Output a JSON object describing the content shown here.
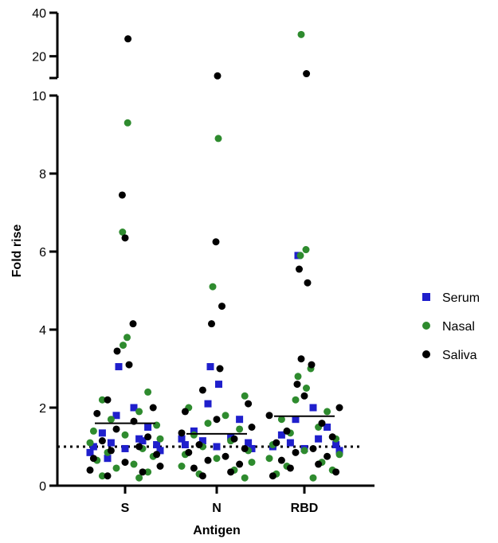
{
  "chart_data": {
    "type": "scatter",
    "xlabel": "Antigen",
    "ylabel": "Fold rise",
    "categories": [
      "S",
      "N",
      "RBD"
    ],
    "y_axis": {
      "broken": true,
      "lower_range": [
        0,
        10
      ],
      "lower_ticks": [
        "0",
        "2",
        "4",
        "6",
        "8",
        "10"
      ],
      "upper_range": [
        10,
        40
      ],
      "upper_ticks": [
        "20",
        "40"
      ]
    },
    "reference_line": {
      "y": 1,
      "style": "dotted"
    },
    "legend": {
      "position": "right"
    },
    "series": [
      {
        "name": "Serum",
        "marker": "square",
        "color": "#1f1fcc",
        "points": [
          {
            "c": "S",
            "y": 3.05
          },
          {
            "c": "S",
            "y": 2.0
          },
          {
            "c": "S",
            "y": 1.8
          },
          {
            "c": "S",
            "y": 1.5
          },
          {
            "c": "S",
            "y": 1.35
          },
          {
            "c": "S",
            "y": 1.2
          },
          {
            "c": "S",
            "y": 1.1
          },
          {
            "c": "S",
            "y": 1.05
          },
          {
            "c": "S",
            "y": 1.0
          },
          {
            "c": "S",
            "y": 0.95
          },
          {
            "c": "S",
            "y": 0.9
          },
          {
            "c": "S",
            "y": 0.85
          },
          {
            "c": "S",
            "y": 1.15
          },
          {
            "c": "S",
            "y": 0.7
          },
          {
            "c": "N",
            "y": 3.05
          },
          {
            "c": "N",
            "y": 2.6
          },
          {
            "c": "N",
            "y": 2.1
          },
          {
            "c": "N",
            "y": 1.7
          },
          {
            "c": "N",
            "y": 1.4
          },
          {
            "c": "N",
            "y": 1.25
          },
          {
            "c": "N",
            "y": 1.15
          },
          {
            "c": "N",
            "y": 1.1
          },
          {
            "c": "N",
            "y": 1.05
          },
          {
            "c": "N",
            "y": 1.0
          },
          {
            "c": "N",
            "y": 0.95
          },
          {
            "c": "N",
            "y": 1.2
          },
          {
            "c": "RBD",
            "y": 5.9
          },
          {
            "c": "RBD",
            "y": 2.0
          },
          {
            "c": "RBD",
            "y": 1.7
          },
          {
            "c": "RBD",
            "y": 1.5
          },
          {
            "c": "RBD",
            "y": 1.3
          },
          {
            "c": "RBD",
            "y": 1.2
          },
          {
            "c": "RBD",
            "y": 1.1
          },
          {
            "c": "RBD",
            "y": 1.05
          },
          {
            "c": "RBD",
            "y": 1.0
          },
          {
            "c": "RBD",
            "y": 0.95
          },
          {
            "c": "RBD",
            "y": 0.9
          }
        ]
      },
      {
        "name": "Nasal",
        "marker": "circle",
        "color": "#2e8b2e",
        "points": [
          {
            "c": "S",
            "y": 9.3
          },
          {
            "c": "S",
            "y": 6.5
          },
          {
            "c": "S",
            "y": 3.8
          },
          {
            "c": "S",
            "y": 3.6
          },
          {
            "c": "S",
            "y": 2.4
          },
          {
            "c": "S",
            "y": 2.2
          },
          {
            "c": "S",
            "y": 1.9
          },
          {
            "c": "S",
            "y": 1.7
          },
          {
            "c": "S",
            "y": 1.55
          },
          {
            "c": "S",
            "y": 1.4
          },
          {
            "c": "S",
            "y": 1.3
          },
          {
            "c": "S",
            "y": 1.2
          },
          {
            "c": "S",
            "y": 1.1
          },
          {
            "c": "S",
            "y": 0.95
          },
          {
            "c": "S",
            "y": 0.85
          },
          {
            "c": "S",
            "y": 0.75
          },
          {
            "c": "S",
            "y": 0.65
          },
          {
            "c": "S",
            "y": 0.55
          },
          {
            "c": "S",
            "y": 0.45
          },
          {
            "c": "S",
            "y": 0.35
          },
          {
            "c": "S",
            "y": 0.25
          },
          {
            "c": "S",
            "y": 0.2
          },
          {
            "c": "N",
            "y": 8.9
          },
          {
            "c": "N",
            "y": 5.1
          },
          {
            "c": "N",
            "y": 2.3
          },
          {
            "c": "N",
            "y": 2.0
          },
          {
            "c": "N",
            "y": 1.8
          },
          {
            "c": "N",
            "y": 1.6
          },
          {
            "c": "N",
            "y": 1.45
          },
          {
            "c": "N",
            "y": 1.3
          },
          {
            "c": "N",
            "y": 1.15
          },
          {
            "c": "N",
            "y": 1.0
          },
          {
            "c": "N",
            "y": 0.9
          },
          {
            "c": "N",
            "y": 0.8
          },
          {
            "c": "N",
            "y": 0.7
          },
          {
            "c": "N",
            "y": 0.6
          },
          {
            "c": "N",
            "y": 0.5
          },
          {
            "c": "N",
            "y": 0.4
          },
          {
            "c": "N",
            "y": 0.3
          },
          {
            "c": "N",
            "y": 0.2
          },
          {
            "c": "RBD",
            "y": 30
          },
          {
            "c": "RBD",
            "y": 6.05
          },
          {
            "c": "RBD",
            "y": 5.9
          },
          {
            "c": "RBD",
            "y": 3.0
          },
          {
            "c": "RBD",
            "y": 2.8
          },
          {
            "c": "RBD",
            "y": 2.5
          },
          {
            "c": "RBD",
            "y": 2.2
          },
          {
            "c": "RBD",
            "y": 1.9
          },
          {
            "c": "RBD",
            "y": 1.7
          },
          {
            "c": "RBD",
            "y": 1.5
          },
          {
            "c": "RBD",
            "y": 1.35
          },
          {
            "c": "RBD",
            "y": 1.2
          },
          {
            "c": "RBD",
            "y": 1.05
          },
          {
            "c": "RBD",
            "y": 0.9
          },
          {
            "c": "RBD",
            "y": 0.8
          },
          {
            "c": "RBD",
            "y": 0.7
          },
          {
            "c": "RBD",
            "y": 0.6
          },
          {
            "c": "RBD",
            "y": 0.5
          },
          {
            "c": "RBD",
            "y": 0.4
          },
          {
            "c": "RBD",
            "y": 0.3
          },
          {
            "c": "RBD",
            "y": 0.2
          }
        ]
      },
      {
        "name": "Saliva",
        "marker": "circle",
        "color": "#000000",
        "points": [
          {
            "c": "S",
            "y": 28
          },
          {
            "c": "S",
            "y": 7.45
          },
          {
            "c": "S",
            "y": 6.35
          },
          {
            "c": "S",
            "y": 4.15
          },
          {
            "c": "S",
            "y": 3.45
          },
          {
            "c": "S",
            "y": 3.1
          },
          {
            "c": "S",
            "y": 2.2
          },
          {
            "c": "S",
            "y": 2.0
          },
          {
            "c": "S",
            "y": 1.85
          },
          {
            "c": "S",
            "y": 1.65
          },
          {
            "c": "S",
            "y": 1.45
          },
          {
            "c": "S",
            "y": 1.25
          },
          {
            "c": "S",
            "y": 1.15
          },
          {
            "c": "S",
            "y": 1.0
          },
          {
            "c": "S",
            "y": 0.9
          },
          {
            "c": "S",
            "y": 0.8
          },
          {
            "c": "S",
            "y": 0.7
          },
          {
            "c": "S",
            "y": 0.6
          },
          {
            "c": "S",
            "y": 0.5
          },
          {
            "c": "S",
            "y": 0.4
          },
          {
            "c": "S",
            "y": 0.35
          },
          {
            "c": "S",
            "y": 0.25
          },
          {
            "c": "N",
            "y": 11
          },
          {
            "c": "N",
            "y": 6.25
          },
          {
            "c": "N",
            "y": 4.6
          },
          {
            "c": "N",
            "y": 4.15
          },
          {
            "c": "N",
            "y": 3.0
          },
          {
            "c": "N",
            "y": 2.45
          },
          {
            "c": "N",
            "y": 2.1
          },
          {
            "c": "N",
            "y": 1.9
          },
          {
            "c": "N",
            "y": 1.7
          },
          {
            "c": "N",
            "y": 1.5
          },
          {
            "c": "N",
            "y": 1.35
          },
          {
            "c": "N",
            "y": 1.2
          },
          {
            "c": "N",
            "y": 1.05
          },
          {
            "c": "N",
            "y": 0.95
          },
          {
            "c": "N",
            "y": 0.85
          },
          {
            "c": "N",
            "y": 0.75
          },
          {
            "c": "N",
            "y": 0.65
          },
          {
            "c": "N",
            "y": 0.55
          },
          {
            "c": "N",
            "y": 0.45
          },
          {
            "c": "N",
            "y": 0.35
          },
          {
            "c": "N",
            "y": 0.25
          },
          {
            "c": "RBD",
            "y": 12
          },
          {
            "c": "RBD",
            "y": 5.55
          },
          {
            "c": "RBD",
            "y": 5.2
          },
          {
            "c": "RBD",
            "y": 3.25
          },
          {
            "c": "RBD",
            "y": 3.1
          },
          {
            "c": "RBD",
            "y": 2.6
          },
          {
            "c": "RBD",
            "y": 2.3
          },
          {
            "c": "RBD",
            "y": 2.0
          },
          {
            "c": "RBD",
            "y": 1.8
          },
          {
            "c": "RBD",
            "y": 1.6
          },
          {
            "c": "RBD",
            "y": 1.4
          },
          {
            "c": "RBD",
            "y": 1.25
          },
          {
            "c": "RBD",
            "y": 1.1
          },
          {
            "c": "RBD",
            "y": 0.95
          },
          {
            "c": "RBD",
            "y": 0.85
          },
          {
            "c": "RBD",
            "y": 0.75
          },
          {
            "c": "RBD",
            "y": 0.65
          },
          {
            "c": "RBD",
            "y": 0.55
          },
          {
            "c": "RBD",
            "y": 0.45
          },
          {
            "c": "RBD",
            "y": 0.35
          },
          {
            "c": "RBD",
            "y": 0.25
          }
        ]
      }
    ],
    "means": [
      {
        "c": "S",
        "y": 1.6
      },
      {
        "c": "N",
        "y": 1.33
      },
      {
        "c": "RBD",
        "y": 1.78
      }
    ]
  }
}
